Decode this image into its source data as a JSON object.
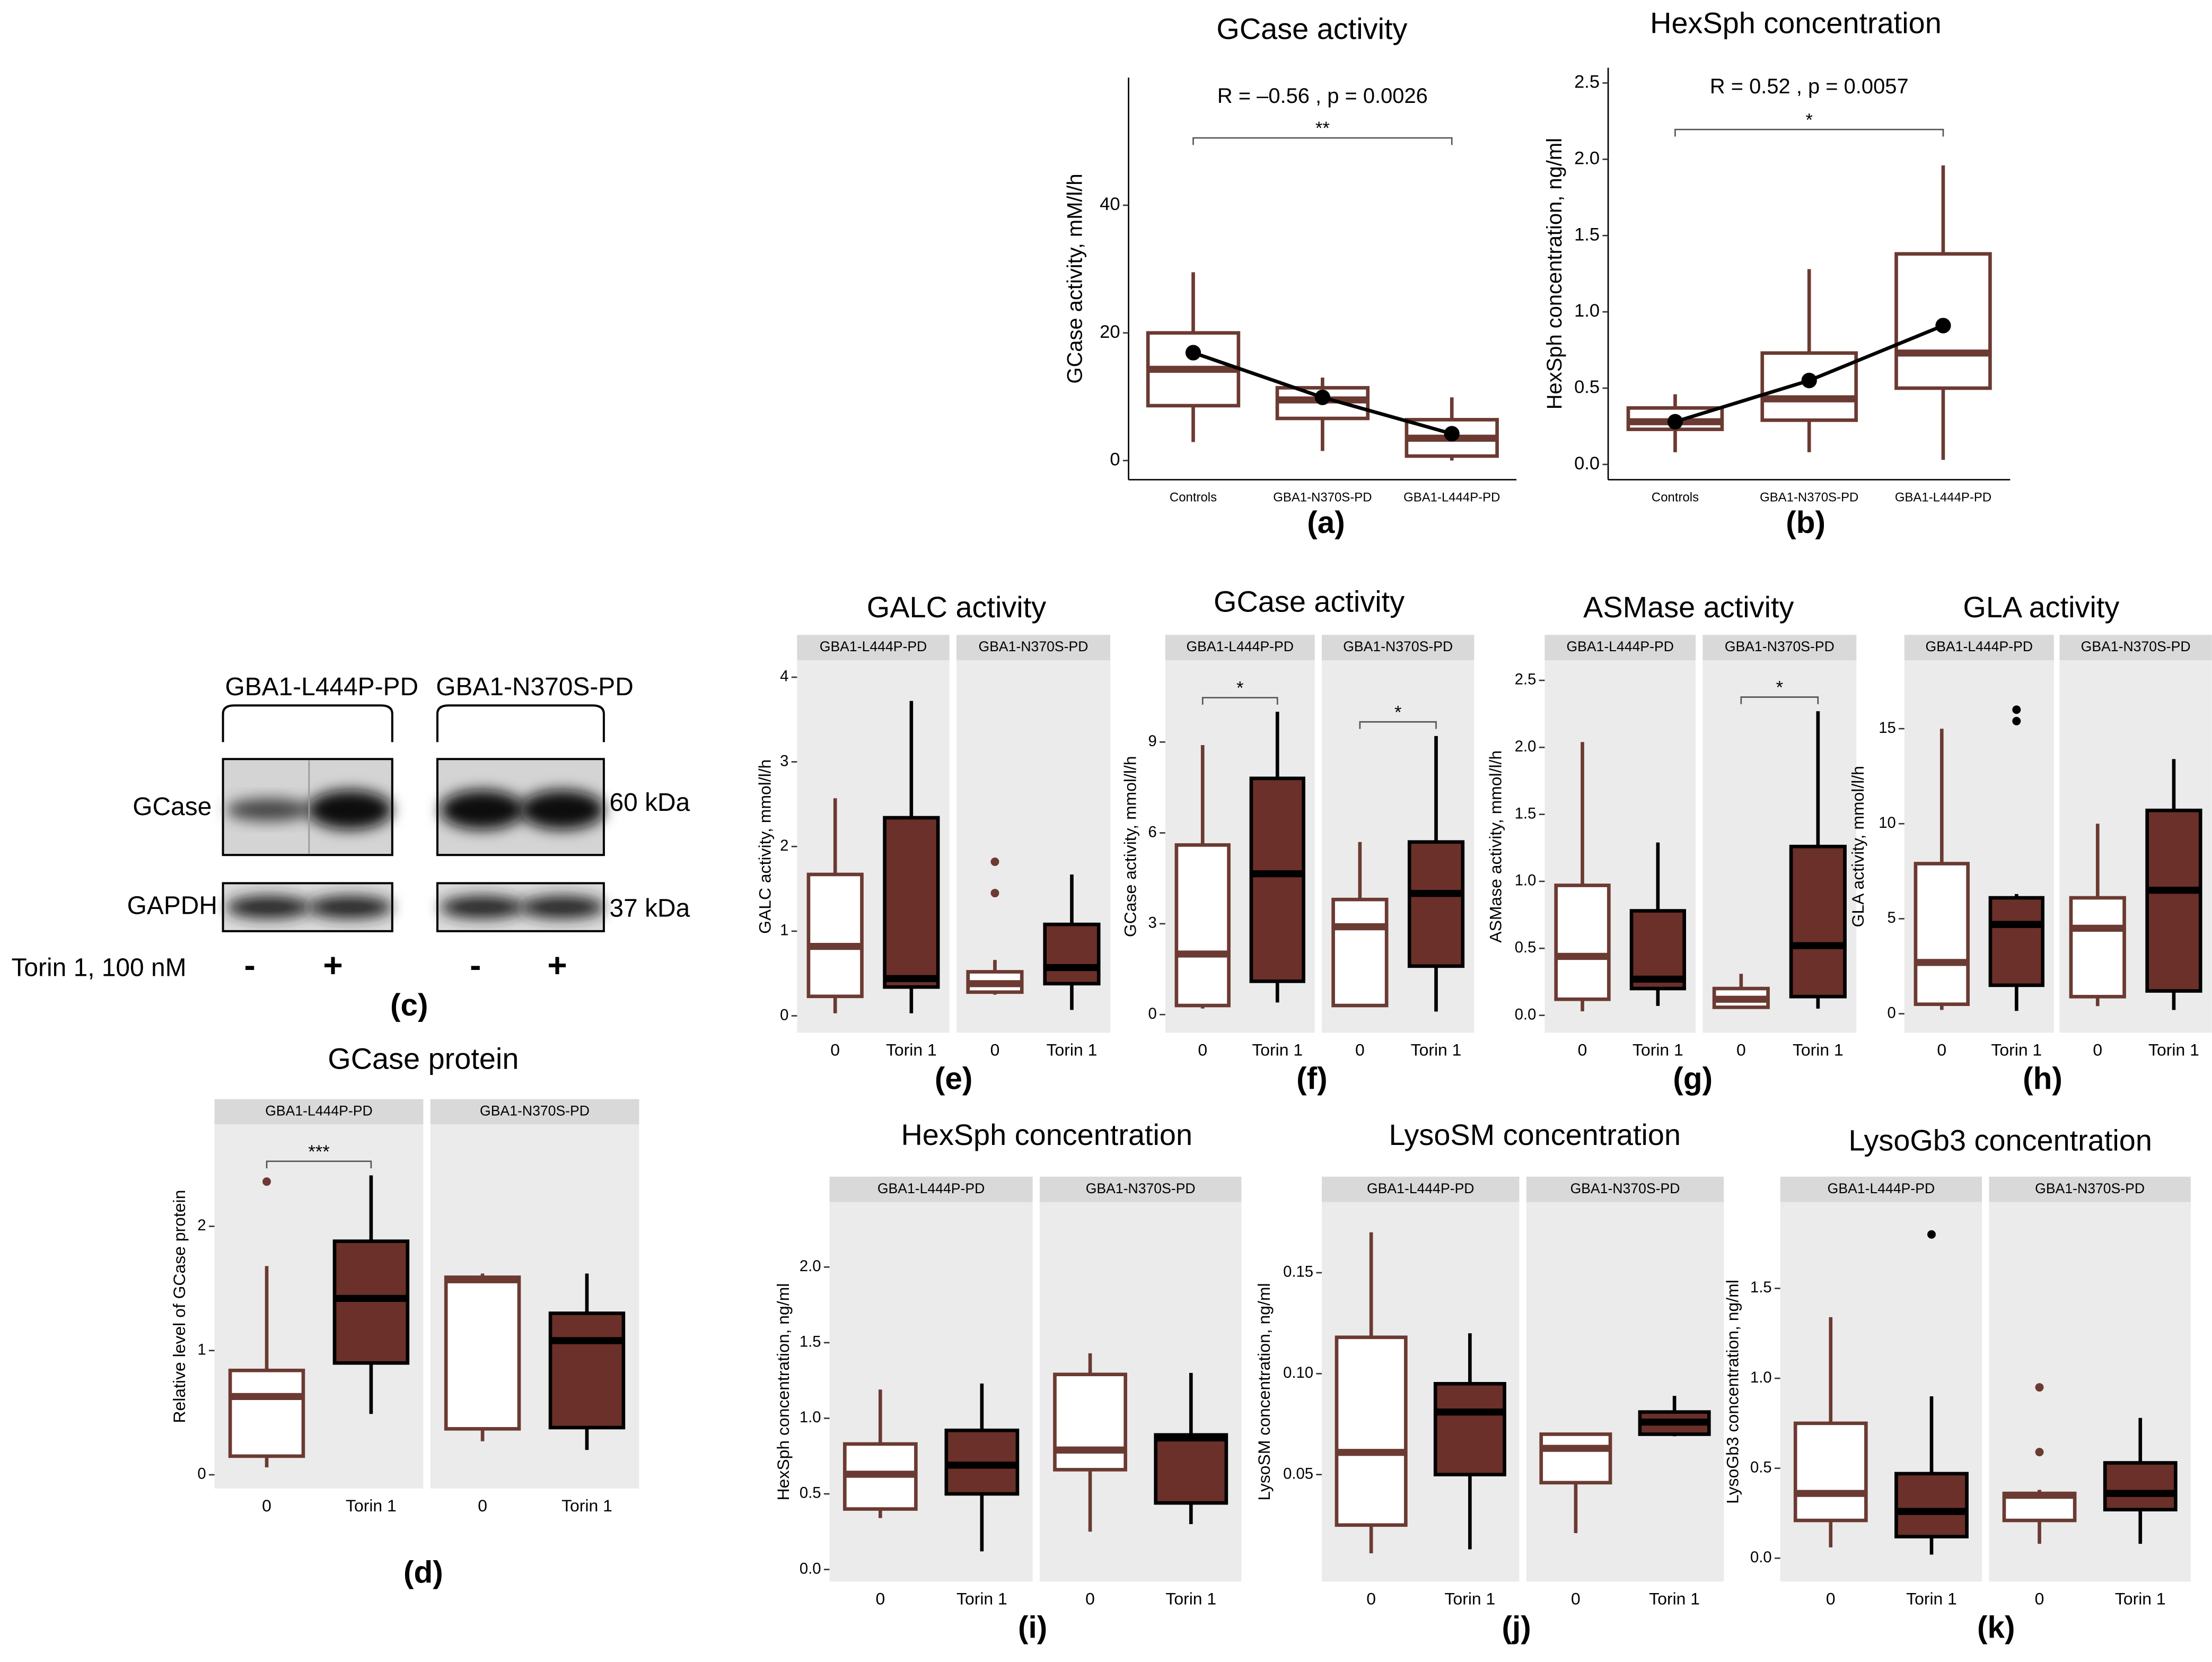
{
  "chart_data": [
    {
      "type": "box",
      "title": "GCase activity",
      "ylabel": "GCase activity, mM/l/h",
      "panel": "(a)",
      "categories": [
        "Controls",
        "GBA1-N370S-PD",
        "GBA1-L444P-PD"
      ],
      "ylim": [
        -3,
        60
      ],
      "yticks": [
        0,
        20,
        40
      ],
      "annotation": "R = –0.56 , p = 0.0026",
      "brackets": [
        {
          "label": "**",
          "facet": 0,
          "from": 0,
          "to": 2
        }
      ],
      "box_fill": [
        "#ffffff",
        "#ffffff",
        "#ffffff"
      ],
      "box_stroke": [
        "#6b3a32",
        "#6b3a32",
        "#6b3a32"
      ],
      "mean_color": "#000000",
      "boxes": [
        [
          {
            "low": 2.9,
            "q1": 8.6,
            "median": 14.3,
            "q3": 20,
            "high": 29.5,
            "outliers": []
          },
          {
            "low": 1.5,
            "q1": 6.6,
            "median": 9.5,
            "q3": 11.4,
            "high": 13,
            "outliers": []
          },
          {
            "low": 0,
            "q1": 0.7,
            "median": 3.5,
            "q3": 6.4,
            "high": 9.9,
            "outliers": []
          }
        ]
      ],
      "means": [
        16.9,
        9.9,
        4.2
      ]
    },
    {
      "type": "box",
      "title": "HexSph concentration",
      "ylabel": "HexSph concentration, ng/ml",
      "panel": "(b)",
      "categories": [
        "Controls",
        "GBA1-N370S-PD",
        "GBA1-L444P-PD"
      ],
      "ylim": [
        -0.1,
        2.6
      ],
      "yticks": [
        {
          "value": 0,
          "label": "0.0"
        },
        0.5,
        {
          "value": 1,
          "label": "1.0"
        },
        1.5,
        {
          "value": 2,
          "label": "2.0"
        },
        2.5
      ],
      "annotation": "R = 0.52 , p = 0.0057",
      "brackets": [
        {
          "label": "*",
          "facet": 0,
          "from": 0,
          "to": 2
        }
      ],
      "box_fill": [
        "#ffffff",
        "#ffffff",
        "#ffffff"
      ],
      "box_stroke": [
        "#6b3a32",
        "#6b3a32",
        "#6b3a32"
      ],
      "mean_color": "#000000",
      "boxes": [
        [
          {
            "low": 0.08,
            "q1": 0.23,
            "median": 0.28,
            "q3": 0.37,
            "high": 0.46,
            "outliers": []
          },
          {
            "low": 0.08,
            "q1": 0.29,
            "median": 0.43,
            "q3": 0.73,
            "high": 1.28,
            "outliers": []
          },
          {
            "low": 0.03,
            "q1": 0.5,
            "median": 0.73,
            "q3": 1.38,
            "high": 1.96,
            "outliers": []
          }
        ]
      ],
      "means": [
        0.28,
        0.55,
        0.91
      ]
    },
    {
      "type": "blot",
      "panel": "(c)",
      "groups": [
        "GBA1-L444P-PD",
        "GBA1-N370S-PD"
      ],
      "rows": [
        "GCase",
        "GAPDH"
      ],
      "sizes": [
        "60 kDa",
        "37 kDa"
      ],
      "treatment": "Torin 1, 100 nM",
      "lanes": [
        "-",
        "+",
        "-",
        "+"
      ]
    },
    {
      "type": "box",
      "title": "GCase protein",
      "ylabel": "Relative level of GCase protein",
      "panel": "(d)",
      "facets": [
        "GBA1-L444P-PD",
        "GBA1-N370S-PD"
      ],
      "categories": [
        "0",
        "Torin 1"
      ],
      "ylim": [
        -0.11,
        2.82
      ],
      "yticks": [
        0,
        1,
        2
      ],
      "brackets": [
        {
          "label": "***",
          "facet": 0,
          "from": 0,
          "to": 1
        }
      ],
      "box_fill": [
        "#ffffff",
        "#6b3029"
      ],
      "box_stroke": [
        "#6b3a32",
        "#000000"
      ],
      "boxes": [
        [
          {
            "low": 0.06,
            "q1": 0.15,
            "median": 0.63,
            "q3": 0.84,
            "high": 1.68,
            "outliers": [
              2.36
            ]
          },
          {
            "low": 0.49,
            "q1": 0.9,
            "median": 1.42,
            "q3": 1.88,
            "high": 2.41,
            "outliers": []
          }
        ],
        [
          {
            "low": 0.27,
            "q1": 0.37,
            "median": 1.57,
            "q3": 1.59,
            "high": 1.62,
            "outliers": []
          },
          {
            "low": 0.2,
            "q1": 0.38,
            "median": 1.08,
            "q3": 1.3,
            "high": 1.62,
            "outliers": []
          }
        ]
      ]
    },
    {
      "type": "box",
      "title": "GALC activity",
      "ylabel": "GALC activity, mmol/l/h",
      "panel": "(e)",
      "facets": [
        "GBA1-L444P-PD",
        "GBA1-N370S-PD"
      ],
      "categories": [
        "0",
        "Torin 1"
      ],
      "ylim": [
        -0.2,
        4.2
      ],
      "yticks": [
        0,
        1,
        2,
        3,
        4
      ],
      "brackets": [],
      "box_fill": [
        "#ffffff",
        "#6b3029"
      ],
      "box_stroke": [
        "#6b3a32",
        "#000000"
      ],
      "boxes": [
        [
          {
            "low": 0.03,
            "q1": 0.23,
            "median": 0.82,
            "q3": 1.67,
            "high": 2.57,
            "outliers": []
          },
          {
            "low": 0.03,
            "q1": 0.34,
            "median": 0.44,
            "q3": 2.34,
            "high": 3.72,
            "outliers": []
          }
        ],
        [
          {
            "low": 0.25,
            "q1": 0.28,
            "median": 0.38,
            "q3": 0.52,
            "high": 0.66,
            "outliers": [
              1.82,
              1.45
            ]
          },
          {
            "low": 0.07,
            "q1": 0.38,
            "median": 0.57,
            "q3": 1.08,
            "high": 1.67,
            "outliers": []
          }
        ]
      ]
    },
    {
      "type": "box",
      "title": "GCase activity",
      "ylabel": "GCase activity, mmol/l/h",
      "panel": "(f)",
      "facets": [
        "GBA1-L444P-PD",
        "GBA1-N370S-PD"
      ],
      "categories": [
        "0",
        "Torin 1"
      ],
      "ylim": [
        -0.6,
        11.7
      ],
      "yticks": [
        0,
        3,
        6,
        9
      ],
      "brackets": [
        {
          "label": "*",
          "facet": 0,
          "from": 0,
          "to": 1
        },
        {
          "label": "*",
          "facet": 1,
          "from": 0,
          "to": 1
        }
      ],
      "box_fill": [
        "#ffffff",
        "#6b3029"
      ],
      "box_stroke": [
        "#6b3a32",
        "#000000"
      ],
      "boxes": [
        [
          {
            "low": 0.2,
            "q1": 0.3,
            "median": 2,
            "q3": 5.6,
            "high": 8.9,
            "outliers": []
          },
          {
            "low": 0.4,
            "q1": 1.1,
            "median": 4.65,
            "q3": 7.8,
            "high": 10,
            "outliers": []
          }
        ],
        [
          {
            "low": 0.3,
            "q1": 0.3,
            "median": 2.9,
            "q3": 3.8,
            "high": 5.7,
            "outliers": []
          },
          {
            "low": 0.1,
            "q1": 1.6,
            "median": 4,
            "q3": 5.7,
            "high": 9.2,
            "outliers": []
          }
        ]
      ]
    },
    {
      "type": "box",
      "title": "ASMase activity",
      "ylabel": "ASMase activity, mmol/l/h",
      "panel": "(g)",
      "facets": [
        "GBA1-L444P-PD",
        "GBA1-N370S-PD"
      ],
      "categories": [
        "0",
        "Torin 1"
      ],
      "ylim": [
        -0.13,
        2.65
      ],
      "yticks": [
        {
          "value": 0,
          "label": "0.0"
        },
        0.5,
        {
          "value": 1,
          "label": "1.0"
        },
        1.5,
        {
          "value": 2,
          "label": "2.0"
        },
        2.5
      ],
      "brackets": [
        {
          "label": "*",
          "facet": 1,
          "from": 0,
          "to": 1
        }
      ],
      "box_fill": [
        "#ffffff",
        "#6b3029"
      ],
      "box_stroke": [
        "#6b3a32",
        "#000000"
      ],
      "boxes": [
        [
          {
            "low": 0.03,
            "q1": 0.12,
            "median": 0.44,
            "q3": 0.97,
            "high": 2.04,
            "outliers": []
          },
          {
            "low": 0.07,
            "q1": 0.2,
            "median": 0.27,
            "q3": 0.78,
            "high": 1.29,
            "outliers": []
          }
        ],
        [
          {
            "low": 0.05,
            "q1": 0.06,
            "median": 0.12,
            "q3": 0.2,
            "high": 0.31,
            "outliers": []
          },
          {
            "low": 0.05,
            "q1": 0.14,
            "median": 0.52,
            "q3": 1.26,
            "high": 2.27,
            "outliers": []
          }
        ]
      ]
    },
    {
      "type": "box",
      "title": "GLA activity",
      "ylabel": "GLA activity, mmol/l/h",
      "panel": "(h)",
      "facets": [
        "GBA1-L444P-PD",
        "GBA1-N370S-PD"
      ],
      "categories": [
        "0",
        "Torin 1"
      ],
      "ylim": [
        -1,
        18.6
      ],
      "yticks": [
        0,
        5,
        10,
        15
      ],
      "brackets": [],
      "box_fill": [
        "#ffffff",
        "#6b3029"
      ],
      "box_stroke": [
        "#6b3a32",
        "#000000"
      ],
      "boxes": [
        [
          {
            "low": 0.2,
            "q1": 0.5,
            "median": 2.7,
            "q3": 7.9,
            "high": 15,
            "outliers": []
          },
          {
            "low": 0.15,
            "q1": 1.5,
            "median": 4.7,
            "q3": 6.1,
            "high": 6.3,
            "outliers": [
              16,
              15.4
            ]
          }
        ],
        [
          {
            "low": 0.4,
            "q1": 0.9,
            "median": 4.5,
            "q3": 6.1,
            "high": 10,
            "outliers": []
          },
          {
            "low": 0.2,
            "q1": 1.2,
            "median": 6.5,
            "q3": 10.7,
            "high": 13.4,
            "outliers": []
          }
        ]
      ]
    },
    {
      "type": "box",
      "title": "HexSph concentration",
      "ylabel": "HexSph concentration, ng/ml",
      "panel": "(i)",
      "facets": [
        "GBA1-L444P-PD",
        "GBA1-N370S-PD"
      ],
      "categories": [
        "0",
        "Torin 1"
      ],
      "ylim": [
        -0.08,
        2.43
      ],
      "yticks": [
        {
          "value": 0,
          "label": "0.0"
        },
        0.5,
        {
          "value": 1,
          "label": "1.0"
        },
        1.5,
        {
          "value": 2,
          "label": "2.0"
        }
      ],
      "brackets": [],
      "box_fill": [
        "#ffffff",
        "#6b3029"
      ],
      "box_stroke": [
        "#6b3a32",
        "#000000"
      ],
      "boxes": [
        [
          {
            "low": 0.34,
            "q1": 0.4,
            "median": 0.63,
            "q3": 0.83,
            "high": 1.19,
            "outliers": []
          },
          {
            "low": 0.12,
            "q1": 0.5,
            "median": 0.69,
            "q3": 0.92,
            "high": 1.23,
            "outliers": []
          }
        ],
        [
          {
            "low": 0.25,
            "q1": 0.66,
            "median": 0.79,
            "q3": 1.29,
            "high": 1.43,
            "outliers": []
          },
          {
            "low": 0.3,
            "q1": 0.44,
            "median": 0.87,
            "q3": 0.89,
            "high": 1.3,
            "outliers": []
          }
        ]
      ]
    },
    {
      "type": "box",
      "title": "LysoSM concentration",
      "ylabel": "LysoSM concentration, ng/ml",
      "panel": "(j)",
      "facets": [
        "GBA1-L444P-PD",
        "GBA1-N370S-PD"
      ],
      "categories": [
        "0",
        "Torin 1"
      ],
      "ylim": [
        -0.003,
        0.185
      ],
      "yticks": [
        0.05,
        {
          "value": 0.1,
          "label": "0.10"
        },
        0.15
      ],
      "brackets": [],
      "box_fill": [
        "#ffffff",
        "#6b3029"
      ],
      "box_stroke": [
        "#6b3a32",
        "#000000"
      ],
      "boxes": [
        [
          {
            "low": 0.011,
            "q1": 0.025,
            "median": 0.061,
            "q3": 0.118,
            "high": 0.17,
            "outliers": []
          },
          {
            "low": 0.013,
            "q1": 0.05,
            "median": 0.081,
            "q3": 0.095,
            "high": 0.12,
            "outliers": []
          }
        ],
        [
          {
            "low": 0.021,
            "q1": 0.046,
            "median": 0.063,
            "q3": 0.07,
            "high": 0.07,
            "outliers": []
          },
          {
            "low": 0.069,
            "q1": 0.07,
            "median": 0.076,
            "q3": 0.081,
            "high": 0.089,
            "outliers": []
          }
        ]
      ]
    },
    {
      "type": "box",
      "title": "LysoGb3 concentration",
      "ylabel": "LysoGb3 concentration, ng/ml",
      "panel": "(k)",
      "facets": [
        "GBA1-L444P-PD",
        "GBA1-N370S-PD"
      ],
      "categories": [
        "0",
        "Torin 1"
      ],
      "ylim": [
        -0.13,
        1.98
      ],
      "yticks": [
        {
          "value": 0,
          "label": "0.0"
        },
        0.5,
        {
          "value": 1,
          "label": "1.0"
        },
        1.5
      ],
      "brackets": [],
      "box_fill": [
        "#ffffff",
        "#6b3029"
      ],
      "box_stroke": [
        "#6b3a32",
        "#000000"
      ],
      "boxes": [
        [
          {
            "low": 0.06,
            "q1": 0.21,
            "median": 0.36,
            "q3": 0.75,
            "high": 1.34,
            "outliers": []
          },
          {
            "low": 0.02,
            "q1": 0.12,
            "median": 0.26,
            "q3": 0.47,
            "high": 0.9,
            "outliers": [
              1.8
            ]
          }
        ],
        [
          {
            "low": 0.08,
            "q1": 0.21,
            "median": 0.35,
            "q3": 0.36,
            "high": 0.38,
            "outliers": [
              0.95,
              0.59
            ]
          },
          {
            "low": 0.08,
            "q1": 0.27,
            "median": 0.36,
            "q3": 0.53,
            "high": 0.78,
            "outliers": []
          }
        ]
      ]
    }
  ]
}
